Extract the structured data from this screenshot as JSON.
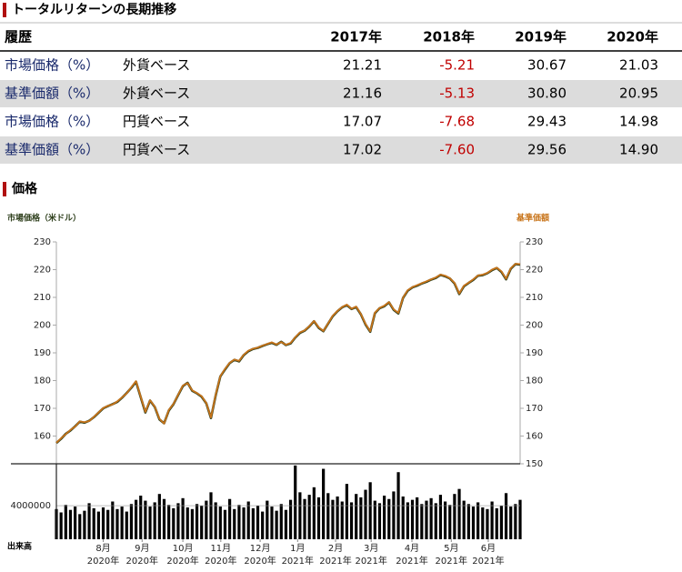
{
  "returns_section": {
    "title": "トータルリターンの長期推移",
    "table": {
      "header": [
        "履歴",
        "2017年",
        "2018年",
        "2019年",
        "2020年"
      ],
      "rows": [
        [
          "市場価格（%）",
          "外貨ベース",
          "21.21",
          "-5.21",
          "30.67",
          "21.03"
        ],
        [
          "基準価額（%）",
          "外貨ベース",
          "21.16",
          "-5.13",
          "30.80",
          "20.95"
        ],
        [
          "市場価格（%）",
          "円貨ベース",
          "17.07",
          "-7.68",
          "29.43",
          "14.98"
        ],
        [
          "基準価額（%）",
          "円貨ベース",
          "17.02",
          "-7.60",
          "29.56",
          "14.90"
        ]
      ]
    }
  },
  "price_section": {
    "title": "価格"
  },
  "chart_data": {
    "type": "line",
    "y_label": "市場価格（米ドル）",
    "y2_label": "基準価額",
    "ylim": [
      150,
      230
    ],
    "yticks": [
      160,
      170,
      180,
      190,
      200,
      210,
      220,
      230
    ],
    "y2lim": [
      150,
      230
    ],
    "y2ticks": [
      150,
      160,
      170,
      180,
      190,
      200,
      210,
      220,
      230
    ],
    "xticks": [
      {
        "value": 10,
        "label": "8月",
        "year": "2020年"
      },
      {
        "value": 18.3,
        "label": "9月",
        "year": "2020年"
      },
      {
        "value": 27,
        "label": "10月",
        "year": "2020年"
      },
      {
        "value": 35.1,
        "label": "11月",
        "year": "2020年"
      },
      {
        "value": 43.5,
        "label": "12月",
        "year": "2020年"
      },
      {
        "value": 51.5,
        "label": "1月",
        "year": "2021年"
      },
      {
        "value": 59.6,
        "label": "2月",
        "year": "2021年"
      },
      {
        "value": 67.2,
        "label": "3月",
        "year": "2021年"
      },
      {
        "value": 75.9,
        "label": "4月",
        "year": "2021年"
      },
      {
        "value": 84.3,
        "label": "5月",
        "year": "2021年"
      },
      {
        "value": 92.2,
        "label": "6月",
        "year": "2021年"
      }
    ],
    "series": [
      {
        "name": "市場価格（米ドル）",
        "color": "#2e3f1c",
        "values": [
          157.5,
          159.0,
          160.8,
          162.0,
          163.5,
          165.2,
          164.8,
          165.5,
          166.8,
          168.4,
          170.0,
          170.8,
          171.5,
          172.3,
          173.8,
          175.5,
          177.4,
          179.6,
          174.0,
          168.5,
          172.8,
          170.5,
          166.0,
          164.6,
          169.2,
          171.5,
          174.8,
          178.0,
          179.2,
          176.3,
          175.4,
          174.2,
          171.8,
          166.5,
          174.6,
          181.5,
          184.0,
          186.3,
          187.5,
          186.9,
          189.2,
          190.6,
          191.4,
          191.8,
          192.5,
          193.1,
          193.6,
          192.9,
          194.0,
          192.8,
          193.4,
          195.5,
          197.2,
          198.0,
          199.5,
          201.4,
          199.0,
          197.8,
          200.5,
          203.2,
          205.0,
          206.4,
          207.2,
          205.8,
          206.5,
          203.9,
          200.2,
          197.6,
          204.3,
          206.1,
          206.8,
          208.2,
          205.5,
          204.2,
          209.8,
          212.4,
          213.6,
          214.2,
          215.0,
          215.6,
          216.4,
          217.0,
          218.1,
          217.6,
          216.8,
          215.0,
          211.2,
          214.0,
          215.2,
          216.3,
          217.8,
          218.0,
          218.7,
          219.8,
          220.6,
          219.2,
          216.5,
          220.3,
          222.0,
          221.8
        ]
      },
      {
        "name": "基準価額",
        "color": "#c8741a",
        "axis": "y2",
        "values": [
          157.6,
          159.2,
          160.7,
          162.2,
          163.4,
          165.3,
          165.0,
          165.4,
          166.9,
          168.5,
          170.1,
          170.9,
          171.4,
          172.5,
          173.9,
          175.4,
          177.6,
          179.8,
          174.2,
          168.7,
          172.9,
          170.6,
          166.2,
          164.5,
          169.4,
          171.6,
          174.9,
          178.2,
          179.1,
          176.5,
          175.5,
          174.4,
          171.9,
          166.7,
          174.8,
          181.6,
          184.2,
          186.4,
          187.6,
          187.1,
          189.3,
          190.8,
          191.5,
          191.9,
          192.6,
          193.2,
          193.8,
          193.0,
          193.9,
          192.9,
          193.6,
          195.6,
          197.4,
          198.1,
          199.6,
          201.5,
          199.2,
          197.9,
          200.6,
          203.4,
          205.1,
          206.5,
          207.4,
          205.9,
          206.7,
          204.0,
          200.4,
          197.8,
          204.5,
          206.2,
          207.0,
          208.3,
          205.7,
          204.4,
          209.9,
          212.6,
          213.7,
          214.4,
          215.1,
          215.8,
          216.5,
          217.2,
          218.2,
          217.8,
          216.9,
          215.2,
          211.4,
          214.2,
          215.3,
          216.5,
          217.9,
          218.2,
          218.8,
          220.0,
          220.7,
          219.4,
          216.7,
          220.5,
          222.1,
          222.0
        ]
      }
    ],
    "volume": {
      "name": "出来高",
      "color": "#000000",
      "ylim": [
        0,
        9000000
      ],
      "yticks": [
        4000000
      ],
      "values": [
        3600000,
        3200000,
        4100000,
        3500000,
        3900000,
        3000000,
        3400000,
        4300000,
        3700000,
        3300000,
        3800000,
        3500000,
        4500000,
        3600000,
        3900000,
        3300000,
        4200000,
        4700000,
        5200000,
        4600000,
        3900000,
        4400000,
        5400000,
        4800000,
        4100000,
        3700000,
        4300000,
        4900000,
        3800000,
        3600000,
        4200000,
        4000000,
        4600000,
        5600000,
        4400000,
        3900000,
        3500000,
        4800000,
        3600000,
        4100000,
        3800000,
        4500000,
        3700000,
        4000000,
        3300000,
        4600000,
        3900000,
        3400000,
        4200000,
        3500000,
        4700000,
        8800000,
        5600000,
        4800000,
        5300000,
        6200000,
        5000000,
        8400000,
        5500000,
        4700000,
        5100000,
        4500000,
        6600000,
        4400000,
        5400000,
        5000000,
        5900000,
        6800000,
        4600000,
        4300000,
        5200000,
        4800000,
        5700000,
        8000000,
        5100000,
        4400000,
        4700000,
        5000000,
        4200000,
        4600000,
        4900000,
        4300000,
        5300000,
        4500000,
        4100000,
        5400000,
        6000000,
        4600000,
        4200000,
        3900000,
        4400000,
        3800000,
        3600000,
        4500000,
        3700000,
        4000000,
        5500000,
        3900000,
        4200000,
        4700000
      ]
    }
  }
}
